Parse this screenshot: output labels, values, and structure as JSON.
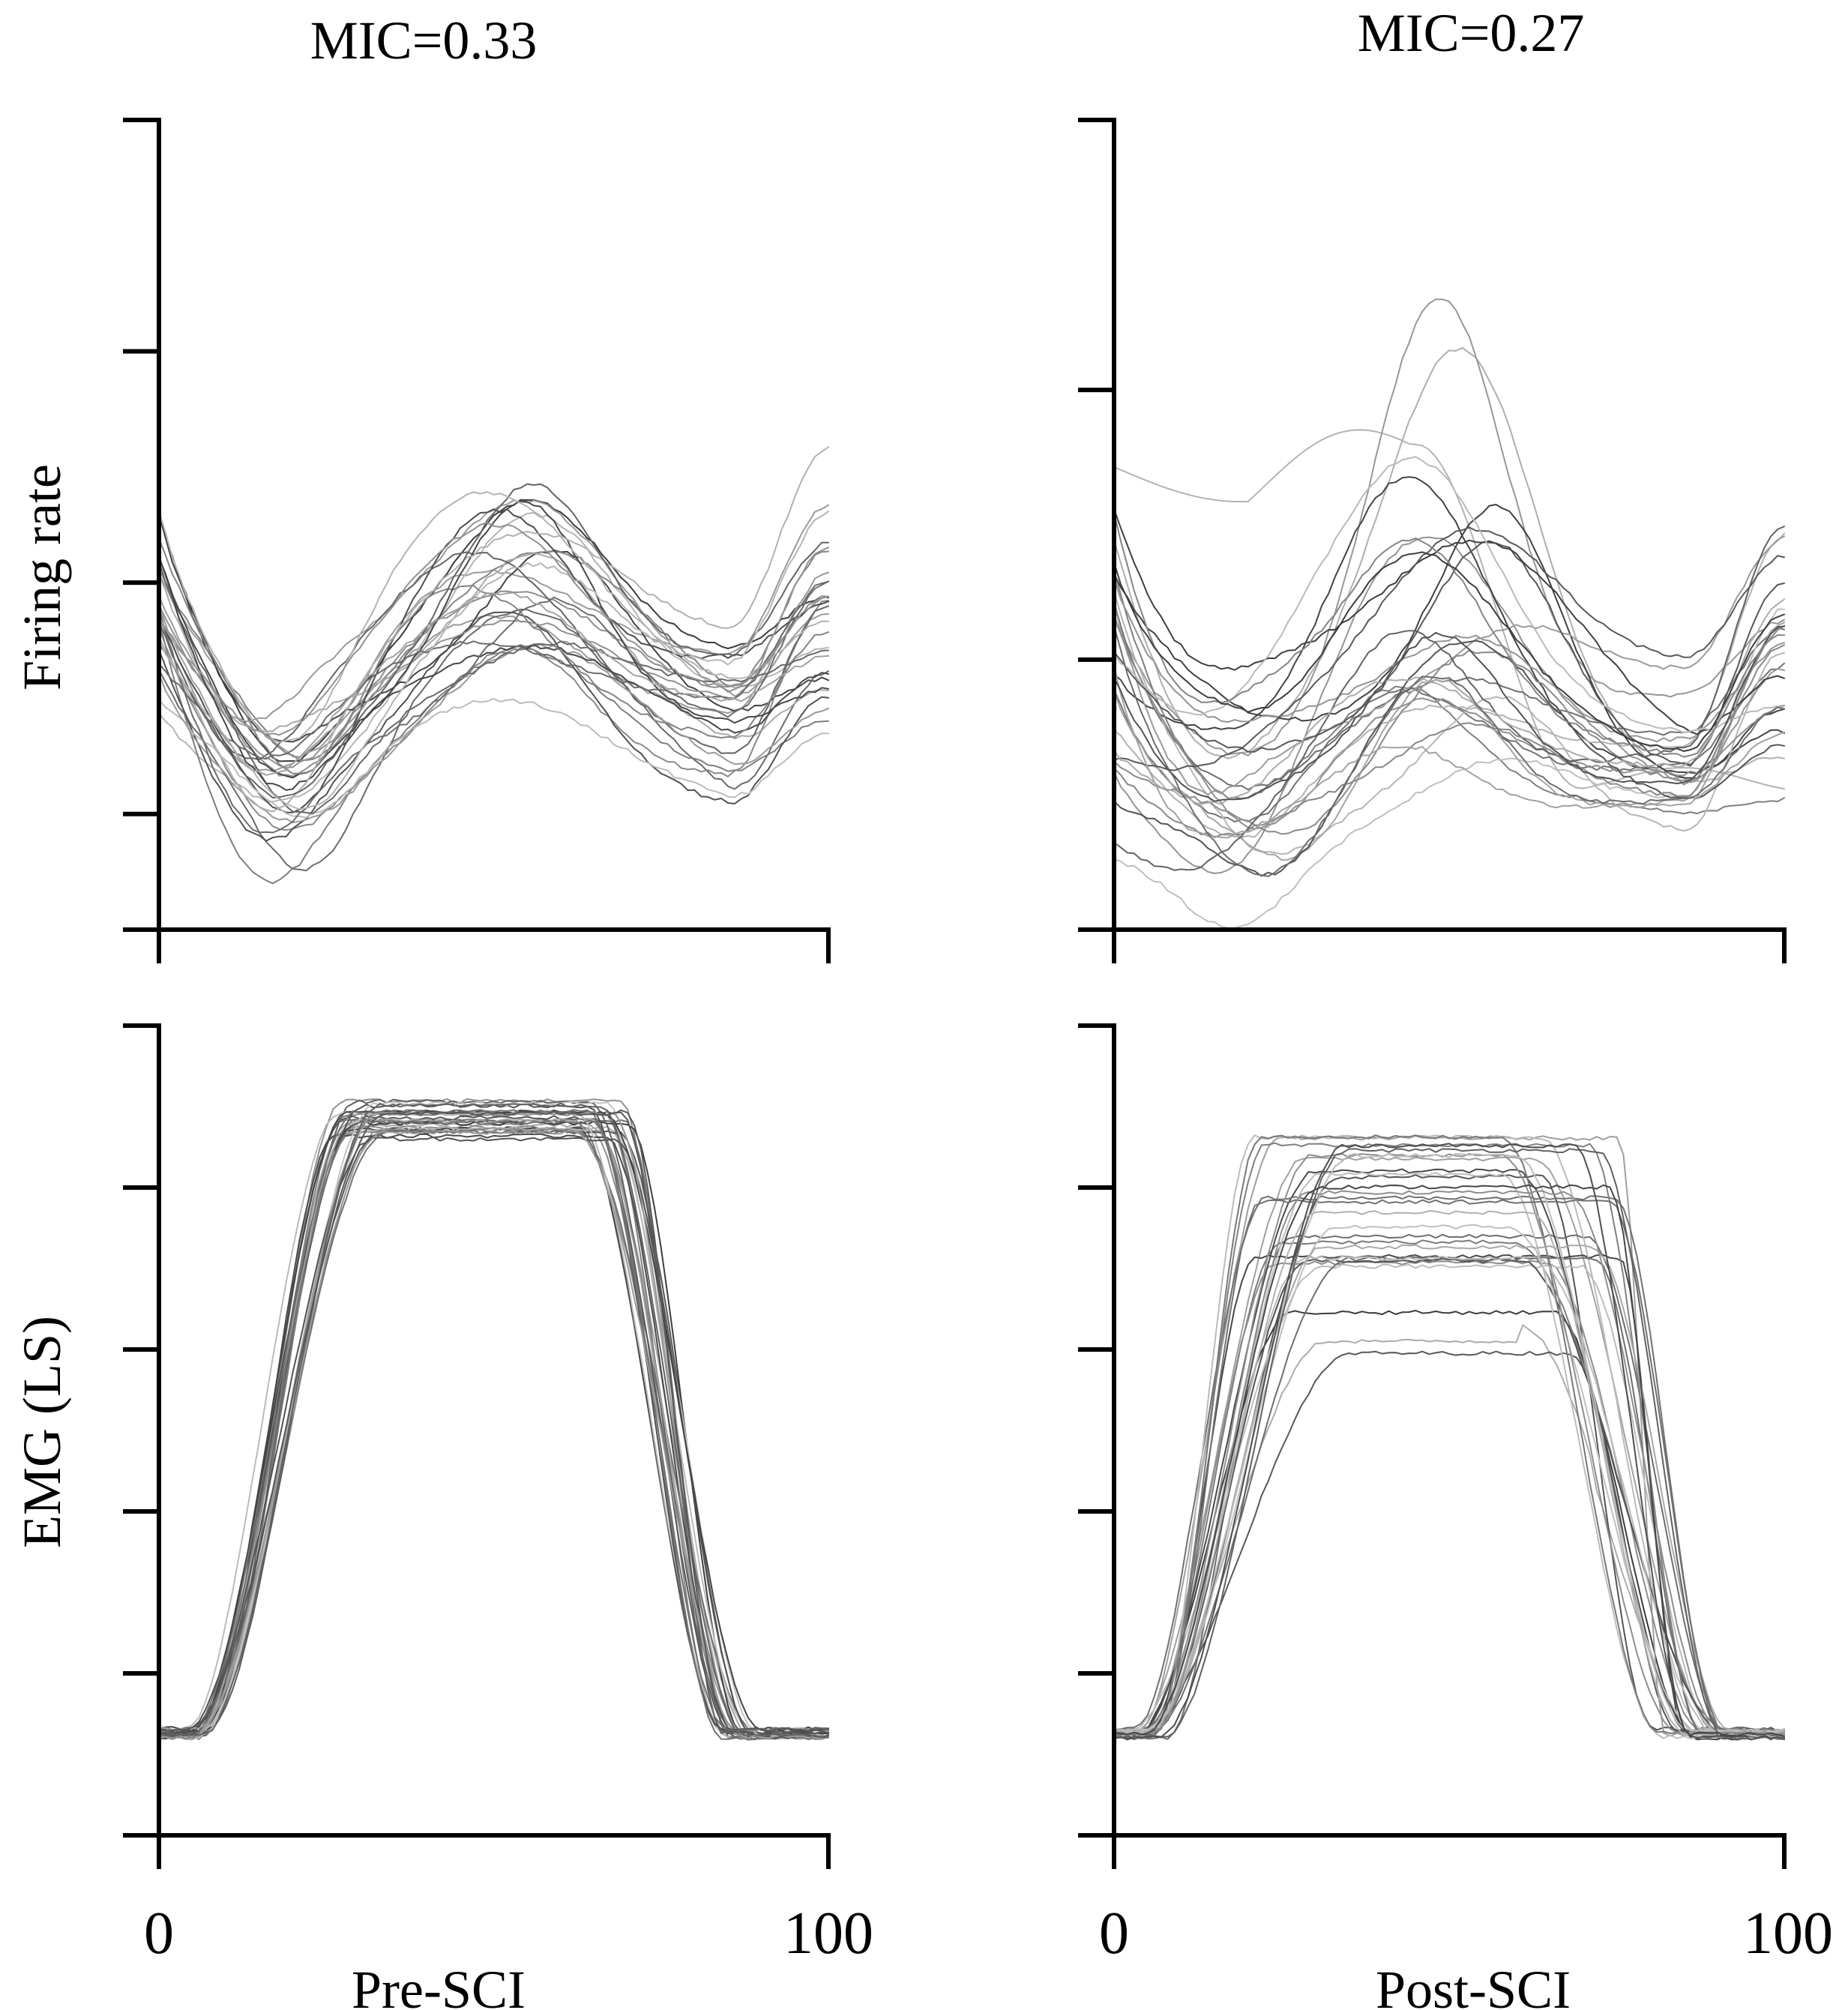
{
  "chart_data": [
    {
      "type": "line",
      "panel": "pre-firing",
      "title": "MIC=0.33",
      "ylabel": "Firing rate",
      "xlabel": "",
      "x_range": [
        0,
        100
      ],
      "x_ticks": [
        0,
        100
      ],
      "x_tick_labels": [
        "",
        ""
      ],
      "y_range": [
        0,
        3.5
      ],
      "y_ticks": [
        0,
        0.5,
        1.5,
        2.5,
        3.5
      ],
      "series_count": 30,
      "mean_curve": {
        "x": [
          0,
          10,
          20,
          30,
          40,
          50,
          60,
          70,
          80,
          90,
          100
        ],
        "y": [
          1.3,
          0.85,
          0.62,
          0.8,
          1.25,
          1.6,
          1.9,
          1.65,
          1.1,
          0.85,
          1.25
        ]
      },
      "amplitude_range": [
        0.2,
        1.0
      ],
      "peak_x_range": [
        44,
        62
      ]
    },
    {
      "type": "line",
      "panel": "post-firing",
      "title": "MIC=0.27",
      "ylabel": "",
      "xlabel": "",
      "x_range": [
        0,
        100
      ],
      "x_ticks": [
        0,
        100
      ],
      "x_tick_labels": [
        "",
        ""
      ],
      "y_range": [
        0,
        3.5
      ],
      "y_ticks": [
        0,
        1.167,
        2.333,
        3.5
      ],
      "series_count": 30,
      "mean_curve": {
        "x": [
          0,
          10,
          20,
          30,
          40,
          50,
          60,
          70,
          80,
          90,
          100
        ],
        "y": [
          0.8,
          0.6,
          0.55,
          0.7,
          1.1,
          1.6,
          1.75,
          1.1,
          0.6,
          0.55,
          0.95
        ]
      },
      "amplitude_range": [
        0.2,
        1.7
      ],
      "peak_x_range": [
        40,
        62
      ]
    },
    {
      "type": "line",
      "panel": "pre-emg",
      "title": "",
      "ylabel": "EMG (LS)",
      "xlabel": "Pre-SCI",
      "x_range": [
        0,
        100
      ],
      "x_ticks": [
        0,
        100
      ],
      "x_tick_labels": [
        "0",
        "100"
      ],
      "y_range": [
        0,
        2.5
      ],
      "y_ticks": [
        0,
        0.5,
        1.0,
        1.5,
        2.0,
        2.5
      ],
      "series_count": 30,
      "mean_curve": {
        "x": [
          0,
          10,
          20,
          30,
          40,
          50,
          60,
          70,
          80,
          90,
          100
        ],
        "y": [
          0.34,
          0.5,
          1.25,
          2.0,
          2.25,
          2.24,
          1.95,
          1.15,
          0.45,
          0.3,
          0.32
        ]
      },
      "amplitude_range": [
        1.85,
        1.98
      ],
      "baseline": 0.3
    },
    {
      "type": "line",
      "panel": "post-emg",
      "title": "",
      "ylabel": "",
      "xlabel": "Post-SCI",
      "x_range": [
        0,
        100
      ],
      "x_ticks": [
        0,
        100
      ],
      "x_tick_labels": [
        "0",
        "100"
      ],
      "y_range": [
        0,
        2.5
      ],
      "y_ticks": [
        0,
        0.5,
        1.0,
        1.5,
        2.0,
        2.5
      ],
      "series_count": 30,
      "mean_curve": {
        "x": [
          0,
          10,
          20,
          30,
          40,
          50,
          60,
          70,
          80,
          90,
          100
        ],
        "y": [
          0.34,
          0.75,
          1.65,
          2.0,
          2.1,
          2.1,
          1.9,
          1.2,
          0.45,
          0.3,
          0.32
        ]
      },
      "amplitude_range": [
        1.3,
        1.96
      ],
      "baseline": 0.3
    }
  ]
}
